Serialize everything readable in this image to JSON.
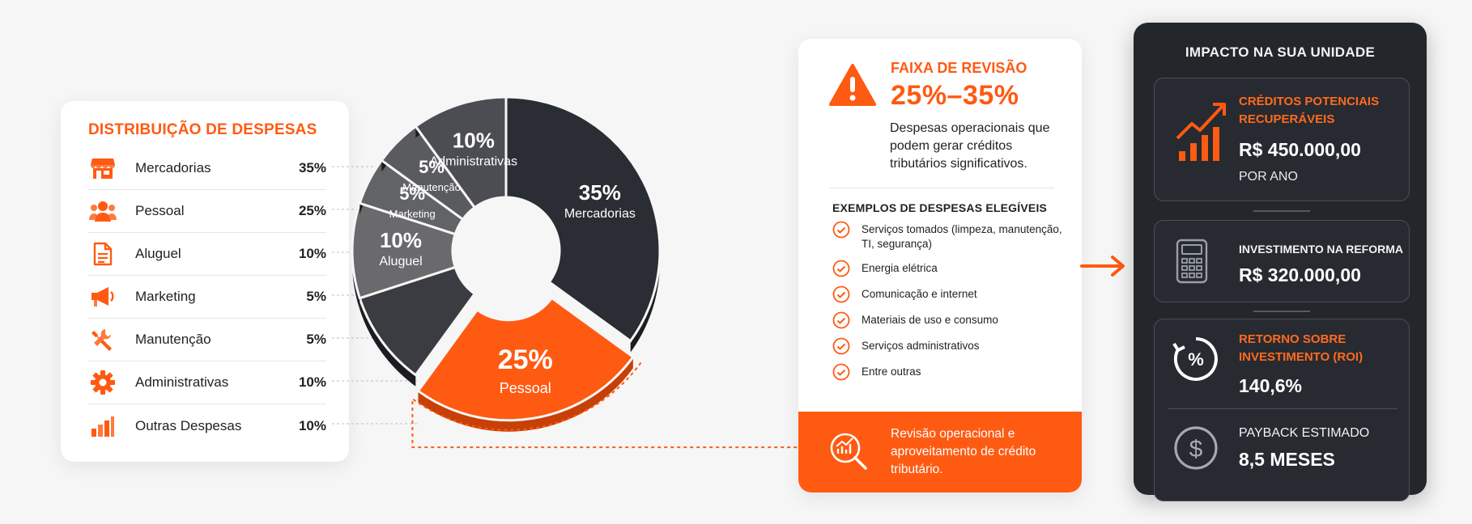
{
  "distribution": {
    "title": "DISTRIBUIÇÃO DE DESPESAS",
    "items": [
      {
        "label": "Mercadorias",
        "pct": "35%",
        "icon": "store-icon"
      },
      {
        "label": "Pessoal",
        "pct": "25%",
        "icon": "people-icon"
      },
      {
        "label": "Aluguel",
        "pct": "10%",
        "icon": "document-icon"
      },
      {
        "label": "Marketing",
        "pct": "5%",
        "icon": "megaphone-icon"
      },
      {
        "label": "Manutenção",
        "pct": "5%",
        "icon": "wrench-icon"
      },
      {
        "label": "Administrativas",
        "pct": "10%",
        "icon": "gear-icon"
      },
      {
        "label": "Outras Despesas",
        "pct": "10%",
        "icon": "bar-chart-icon"
      }
    ]
  },
  "chart_data": {
    "type": "pie",
    "donut": true,
    "highlight": "Pessoal",
    "segments": [
      {
        "label": "Mercadorias",
        "value": 35,
        "pct_label": "35%",
        "color": "#2a2d33",
        "show_label": true
      },
      {
        "label": "Pessoal",
        "value": 25,
        "pct_label": "25%",
        "color": "#ff5a12",
        "show_label": true
      },
      {
        "label": "Outras Despesas",
        "value": 10,
        "pct_label": "10%",
        "color": "#3a3c41",
        "show_label": false
      },
      {
        "label": "Aluguel",
        "value": 10,
        "pct_label": "10%",
        "color": "#6a6a6d",
        "show_label": true
      },
      {
        "label": "Marketing",
        "value": 5,
        "pct_label": "5%",
        "color": "#626366",
        "show_label": true
      },
      {
        "label": "Manutenção",
        "value": 5,
        "pct_label": "5%",
        "color": "#5a5b5f",
        "show_label": true
      },
      {
        "label": "Administrativas",
        "value": 10,
        "pct_label": "10%",
        "color": "#4b4d52",
        "show_label": true
      }
    ]
  },
  "review": {
    "kicker": "FAIXA DE REVISÃO",
    "range": "25%–35%",
    "description": "Despesas operacionais que podem gerar créditos tributários significativos.",
    "examples_title": "EXEMPLOS DE DESPESAS ELEGÍVEIS",
    "examples": [
      "Serviços tomados (limpeza, manutenção, TI, segurança)",
      "Energia elétrica",
      "Comunicação e internet",
      "Materiais de uso e consumo",
      "Serviços administrativos",
      "Entre outras"
    ],
    "footer": "Revisão operacional e aproveitamento de crédito tributário."
  },
  "impact": {
    "title": "IMPACTO NA SUA UNIDADE",
    "credits_label": "CRÉDITOS POTENCIAIS RECUPERÁVEIS",
    "credits_value": "R$ 450.000,00",
    "credits_period": "POR ANO",
    "invest_label": "INVESTIMENTO NA REFORMA",
    "invest_value": "R$ 320.000,00",
    "roi_label": "RETORNO SOBRE INVESTIMENTO (ROI)",
    "roi_value": "140,6%",
    "payback_label": "PAYBACK ESTIMADO",
    "payback_value": "8,5 MESES"
  },
  "colors": {
    "accent": "#ff5a12",
    "dark": "#23262b"
  }
}
